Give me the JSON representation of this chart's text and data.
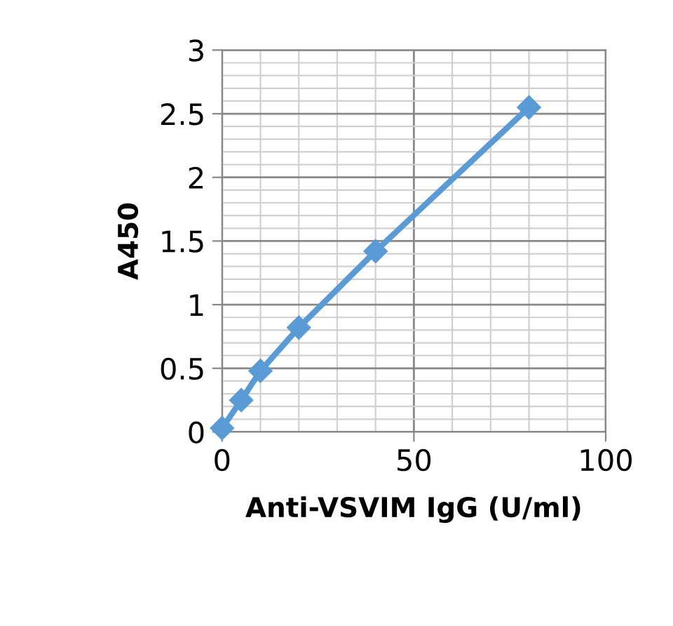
{
  "chart_data": {
    "type": "line",
    "xlabel": "Anti-VSVIM IgG (U/ml)",
    "ylabel": "A450",
    "x": [
      0,
      5,
      10,
      20,
      40,
      80
    ],
    "series": [
      {
        "color": "#5b9bd5",
        "values": [
          0.03,
          0.25,
          0.48,
          0.82,
          1.42,
          2.55
        ]
      }
    ],
    "xlim": [
      0,
      100
    ],
    "xticks": [
      0,
      50,
      100
    ],
    "ylim": [
      0,
      3
    ],
    "yticks": [
      0,
      0.5,
      1,
      1.5,
      2,
      2.5,
      3
    ],
    "grid": true,
    "marker": "diamond",
    "line_style": "solid"
  }
}
